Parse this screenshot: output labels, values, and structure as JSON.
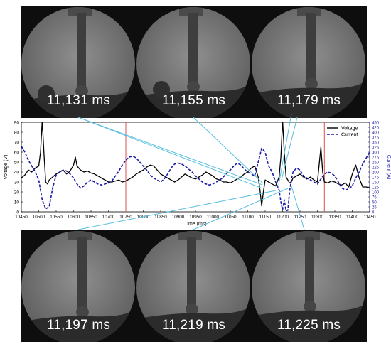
{
  "frames_top": [
    {
      "label": "11,131 ms"
    },
    {
      "label": "11,155 ms"
    },
    {
      "label": "11,179 ms"
    }
  ],
  "frames_bottom": [
    {
      "label": "11,197 ms"
    },
    {
      "label": "11,219 ms"
    },
    {
      "label": "11,225 ms"
    }
  ],
  "chart_data": {
    "type": "line",
    "title": "",
    "xlabel": "Time (ms)",
    "ylabel": "Voltage (V)",
    "y2label": "Current (A)",
    "xlim": [
      10450,
      11450
    ],
    "ylim": [
      0,
      90
    ],
    "y2lim": [
      0,
      450
    ],
    "xticks": [
      10450,
      10500,
      10550,
      10600,
      10650,
      10700,
      10750,
      10800,
      10850,
      10900,
      10950,
      11000,
      11050,
      11100,
      11150,
      11200,
      11250,
      11300,
      11350,
      11400,
      11450
    ],
    "yticks": [
      0,
      10,
      20,
      30,
      40,
      50,
      60,
      70,
      80,
      90
    ],
    "y2ticks": [
      0,
      25,
      50,
      75,
      100,
      125,
      150,
      175,
      200,
      225,
      250,
      275,
      300,
      325,
      350,
      375,
      400,
      425,
      450
    ],
    "legend_position": "top-right",
    "marker_lines_x": [
      10750,
      11320
    ],
    "colors": {
      "voltage": "#000000",
      "current": "#1a1aa8",
      "marker": "#d9534f",
      "connector": "#5bc0de",
      "y2axis": "#1a1aa8"
    },
    "series": [
      {
        "name": "Voltage",
        "axis": "left",
        "style": "solid",
        "x": [
          10450,
          10460,
          10470,
          10480,
          10490,
          10500,
          10505,
          10510,
          10515,
          10520,
          10525,
          10530,
          10540,
          10550,
          10560,
          10570,
          10580,
          10590,
          10600,
          10605,
          10610,
          10620,
          10630,
          10640,
          10650,
          10660,
          10670,
          10680,
          10690,
          10700,
          10710,
          10720,
          10730,
          10740,
          10750,
          10760,
          10770,
          10780,
          10790,
          10800,
          10810,
          10820,
          10830,
          10840,
          10850,
          10860,
          10870,
          10880,
          10890,
          10900,
          10910,
          10920,
          10930,
          10940,
          10950,
          10960,
          10970,
          10980,
          10990,
          11000,
          11010,
          11020,
          11030,
          11040,
          11050,
          11060,
          11070,
          11080,
          11090,
          11100,
          11110,
          11120,
          11130,
          11135,
          11140,
          11145,
          11150,
          11160,
          11170,
          11180,
          11190,
          11195,
          11200,
          11205,
          11210,
          11215,
          11220,
          11225,
          11230,
          11240,
          11250,
          11260,
          11270,
          11280,
          11290,
          11300,
          11305,
          11310,
          11315,
          11320,
          11330,
          11340,
          11350,
          11360,
          11370,
          11380,
          11390,
          11400,
          11410,
          11420,
          11430,
          11440,
          11450
        ],
        "values": [
          34,
          37,
          42,
          40,
          44,
          46,
          60,
          92,
          58,
          30,
          28,
          32,
          35,
          38,
          40,
          42,
          38,
          41,
          47,
          55,
          46,
          42,
          40,
          41,
          39,
          38,
          36,
          34,
          32,
          30,
          30,
          31,
          32,
          30,
          31,
          33,
          35,
          38,
          40,
          42,
          45,
          47,
          46,
          42,
          38,
          36,
          34,
          32,
          30,
          32,
          35,
          38,
          36,
          34,
          33,
          35,
          37,
          40,
          38,
          36,
          33,
          32,
          30,
          30,
          29,
          31,
          33,
          35,
          38,
          40,
          44,
          46,
          35,
          22,
          6,
          20,
          32,
          30,
          28,
          26,
          35,
          55,
          92,
          60,
          35,
          32,
          29,
          30,
          34,
          36,
          38,
          35,
          33,
          35,
          32,
          30,
          47,
          65,
          40,
          30,
          29,
          31,
          30,
          28,
          27,
          29,
          25,
          38,
          47,
          34,
          25,
          25,
          24
        ]
      },
      {
        "name": "Current",
        "axis": "right",
        "style": "dashed",
        "x": [
          10450,
          10460,
          10470,
          10480,
          10490,
          10500,
          10510,
          10520,
          10530,
          10540,
          10550,
          10560,
          10570,
          10580,
          10590,
          10600,
          10610,
          10620,
          10630,
          10640,
          10650,
          10660,
          10670,
          10680,
          10690,
          10700,
          10710,
          10720,
          10730,
          10740,
          10750,
          10760,
          10770,
          10780,
          10790,
          10800,
          10810,
          10820,
          10830,
          10840,
          10850,
          10860,
          10870,
          10880,
          10890,
          10900,
          10910,
          10920,
          10930,
          10940,
          10950,
          10960,
          10970,
          10980,
          10990,
          11000,
          11010,
          11020,
          11030,
          11040,
          11050,
          11060,
          11070,
          11080,
          11090,
          11100,
          11110,
          11120,
          11130,
          11140,
          11150,
          11160,
          11170,
          11180,
          11190,
          11195,
          11200,
          11205,
          11210,
          11215,
          11220,
          11225,
          11230,
          11240,
          11250,
          11260,
          11270,
          11280,
          11290,
          11300,
          11310,
          11320,
          11330,
          11340,
          11350,
          11360,
          11370,
          11380,
          11390,
          11400,
          11410,
          11420,
          11430,
          11440,
          11450
        ],
        "values": [
          330,
          300,
          260,
          230,
          200,
          160,
          60,
          15,
          25,
          120,
          185,
          200,
          210,
          205,
          190,
          170,
          140,
          120,
          130,
          150,
          160,
          150,
          140,
          135,
          140,
          145,
          155,
          180,
          205,
          235,
          260,
          275,
          280,
          270,
          250,
          230,
          210,
          185,
          170,
          160,
          150,
          165,
          190,
          220,
          240,
          245,
          240,
          230,
          215,
          200,
          180,
          165,
          150,
          140,
          135,
          140,
          150,
          160,
          175,
          195,
          210,
          230,
          245,
          235,
          215,
          200,
          190,
          180,
          250,
          320,
          300,
          230,
          200,
          150,
          110,
          50,
          10,
          60,
          5,
          8,
          100,
          160,
          200,
          220,
          210,
          180,
          170,
          160,
          150,
          140,
          165,
          190,
          200,
          195,
          180,
          150,
          120,
          110,
          115,
          130,
          170,
          200,
          240,
          270,
          300
        ]
      }
    ]
  }
}
